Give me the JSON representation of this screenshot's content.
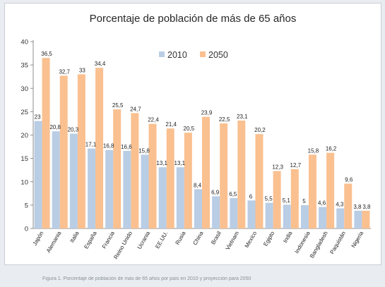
{
  "chart_data": {
    "type": "bar",
    "title": "Porcentaje de población de más de 65 años",
    "xlabel": "",
    "ylabel": "",
    "ylim": [
      0,
      40
    ],
    "yticks": [
      0,
      5,
      10,
      15,
      20,
      25,
      30,
      35,
      40
    ],
    "grid": false,
    "legend_position": "top-center",
    "categories": [
      "Japón",
      "Alemania",
      "Italia",
      "España",
      "Francia",
      "Reino Unido",
      "Ucrania",
      "EE.UU.",
      "Rusia",
      "China",
      "Brasil",
      "Vietnam",
      "Mexico",
      "Egipto",
      "India",
      "Indonesia",
      "Bangladesh",
      "Paquistán",
      "Nigeria"
    ],
    "series": [
      {
        "name": "2010",
        "color": "#b9cde5",
        "values": [
          23,
          20.8,
          20.3,
          17.1,
          16.8,
          16.6,
          15.8,
          13.1,
          13.1,
          8.4,
          6.9,
          6.5,
          6,
          5.5,
          5.1,
          5,
          4.6,
          4.3,
          3.8
        ],
        "labels": [
          "23",
          "20,8",
          "20,3",
          "17,1",
          "16,8",
          "16,6",
          "15,8",
          "13,1",
          "13,1",
          "8,4",
          "6,9",
          "6,5",
          "6",
          "5,5",
          "5,1",
          "5",
          "4,6",
          "4,3",
          "3,8"
        ]
      },
      {
        "name": "2050",
        "color": "#fac090",
        "values": [
          36.5,
          32.7,
          33,
          34.4,
          25.5,
          24.7,
          22.4,
          21.4,
          20.5,
          23.9,
          22.5,
          23.1,
          20.2,
          12.3,
          12.7,
          15.8,
          16.2,
          9.6,
          3.8
        ],
        "labels": [
          "36,5",
          "32,7",
          "33",
          "34,4",
          "25,5",
          "24,7",
          "22,4",
          "21,4",
          "20,5",
          "23,9",
          "22,5",
          "23,1",
          "20,2",
          "12,3",
          "12,7",
          "15,8",
          "16,2",
          "9,6",
          "3,8"
        ]
      }
    ]
  },
  "caption": "Figura 1. Porcentaje de población de más de 65 años por país en 2010 y proyección para 2050"
}
